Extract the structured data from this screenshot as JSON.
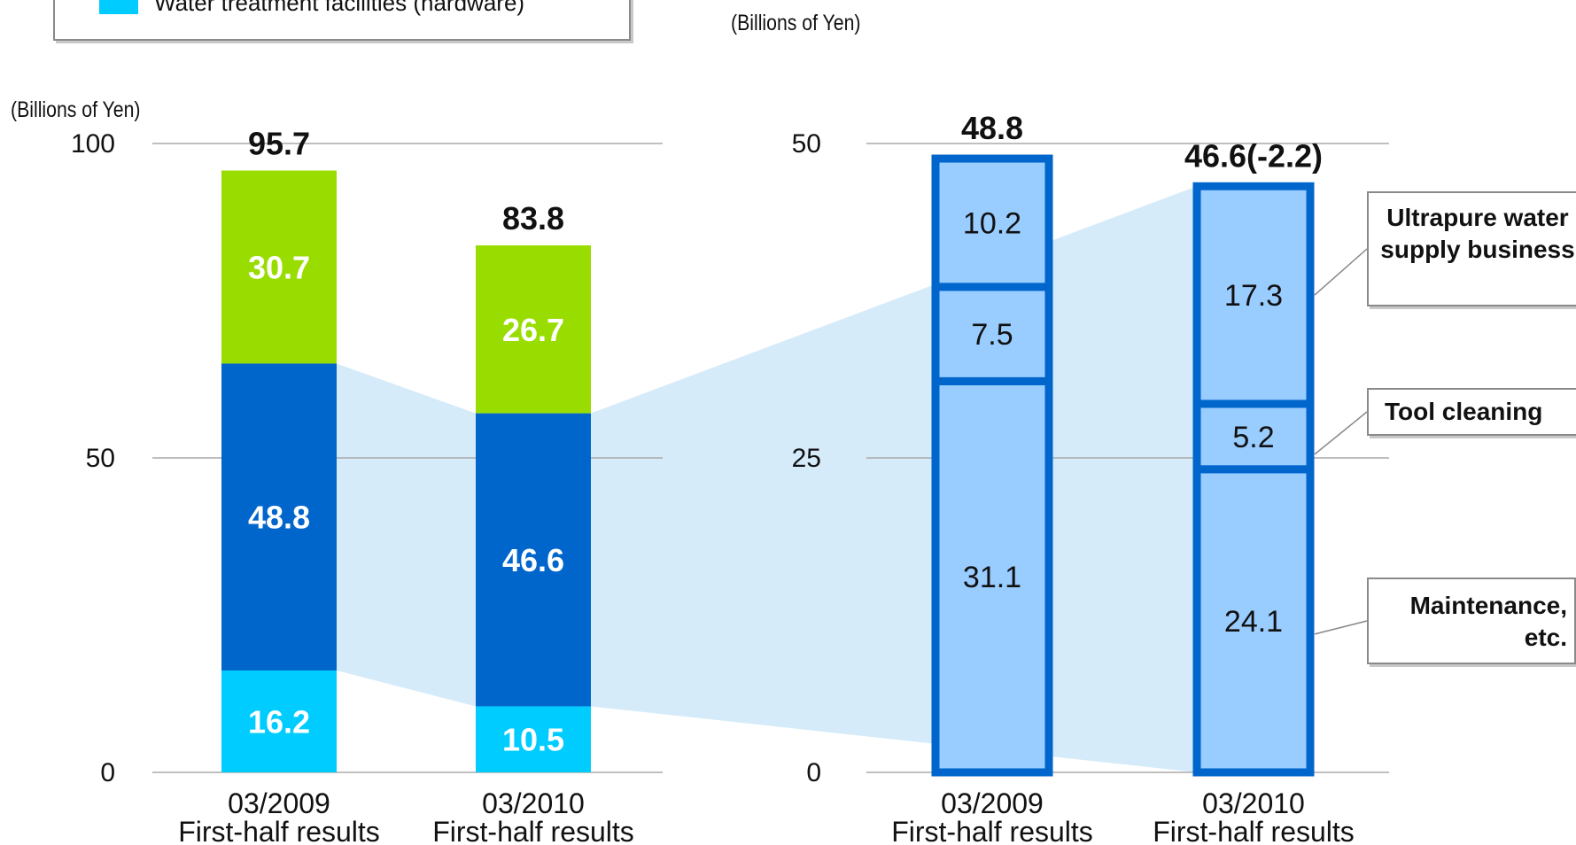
{
  "legend": {
    "items": [
      {
        "label": "Water treatment facilities (hardware)",
        "color": "#00ccff"
      }
    ]
  },
  "chart_data": [
    {
      "type": "bar",
      "stacked": true,
      "unit_label": "(Billions of Yen)",
      "categories": [
        [
          "03/2009",
          "First-half results"
        ],
        [
          "03/2010",
          "First-half results"
        ]
      ],
      "series": [
        {
          "name": "Water treatment facilities (hardware)",
          "values": [
            16.2,
            10.5
          ],
          "color": "#00ccff"
        },
        {
          "values": [
            48.8,
            46.6
          ],
          "color": "#0066cc"
        },
        {
          "values": [
            30.7,
            26.7
          ],
          "color": "#99dd00"
        }
      ],
      "totals": [
        "95.7",
        "83.8"
      ],
      "ylim": [
        0,
        100
      ],
      "yticks": [
        0,
        50,
        100
      ],
      "grid": true
    },
    {
      "type": "bar",
      "stacked": true,
      "unit_label": "(Billions of Yen)",
      "categories": [
        [
          "03/2009",
          "First-half results"
        ],
        [
          "03/2010",
          "First-half results"
        ]
      ],
      "series": [
        {
          "name": "Maintenance, etc.",
          "values": [
            31.1,
            24.1
          ],
          "color": "#99ccff"
        },
        {
          "name": "Tool cleaning",
          "values": [
            7.5,
            5.2
          ],
          "color": "#99ccff"
        },
        {
          "name": "Ultrapure water supply business",
          "values": [
            10.2,
            17.3
          ],
          "color": "#99ccff"
        }
      ],
      "totals": [
        "48.8",
        "46.6(-2.2)"
      ],
      "ylim": [
        0,
        50
      ],
      "yticks": [
        0,
        25,
        50
      ],
      "grid": true,
      "border_color": "#0066cc"
    }
  ],
  "callouts": {
    "ultrapure": "Ultrapure water supply business",
    "tool_cleaning": "Tool cleaning",
    "maintenance": "Maintenance, etc."
  },
  "colors": {
    "connector_fill": "#d5ebfa",
    "grid": "#aaaaaa",
    "highlight_border": "#0066cc"
  }
}
